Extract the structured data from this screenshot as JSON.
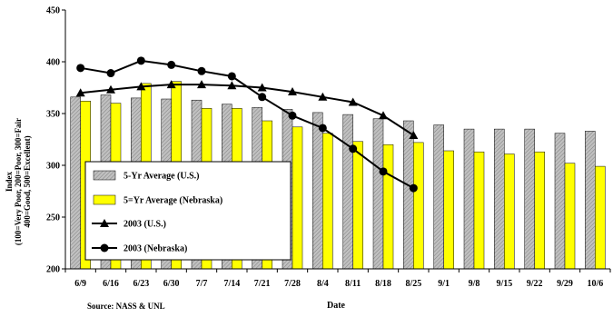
{
  "chart_data": {
    "type": "bar",
    "title": "",
    "xlabel": "Date",
    "ylabel_lines": [
      "Index",
      "(100=Very Poor, 200=Poor, 300=Fair",
      "400=Good, 500=Excellent)"
    ],
    "ylim": [
      200,
      450
    ],
    "yticks": [
      "200",
      "250",
      "300",
      "350",
      "400",
      "450"
    ],
    "categories": [
      "6/9",
      "6/16",
      "6/23",
      "6/30",
      "7/7",
      "7/14",
      "7/21",
      "7/28",
      "8/4",
      "8/11",
      "8/18",
      "8/25",
      "9/1",
      "9/8",
      "9/15",
      "9/22",
      "9/29",
      "10/6"
    ],
    "series": [
      {
        "name": "5-Yr Average (U.S.)",
        "kind": "bar",
        "color": "#c0c0c0",
        "pattern": "hatched",
        "values": [
          366,
          368,
          365,
          364,
          363,
          359,
          356,
          354,
          351,
          349,
          345,
          343,
          339,
          335,
          335,
          335,
          331,
          333
        ]
      },
      {
        "name": "5=Yr Average (Nebraska)",
        "kind": "bar",
        "color": "#ffff00",
        "values": [
          362,
          360,
          379,
          381,
          355,
          355,
          343,
          337,
          331,
          323,
          320,
          322,
          314,
          313,
          311,
          313,
          302,
          299
        ]
      },
      {
        "name": "2003 (U.S.)",
        "kind": "line",
        "marker": "triangle",
        "color": "#000000",
        "values": [
          370,
          373,
          376,
          378,
          378,
          377,
          375,
          371,
          366,
          361,
          348,
          329,
          null,
          null,
          null,
          null,
          null,
          null
        ]
      },
      {
        "name": "2003 (Nebraska)",
        "kind": "line",
        "marker": "circle",
        "color": "#000000",
        "values": [
          394,
          389,
          401,
          397,
          391,
          386,
          366,
          348,
          336,
          316,
          294,
          278,
          null,
          null,
          null,
          null,
          null,
          null
        ]
      }
    ],
    "legend_position": "lower-left",
    "grid": false,
    "source": "Source: NASS & UNL"
  }
}
